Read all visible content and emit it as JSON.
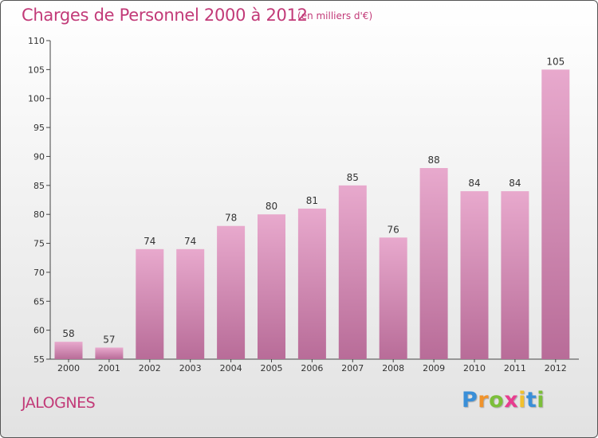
{
  "chart_data": {
    "type": "bar",
    "title": "Charges de Personnel 2000 à 2012",
    "subtitle": "(en milliers d'€)",
    "categories": [
      "2000",
      "2001",
      "2002",
      "2003",
      "2004",
      "2005",
      "2006",
      "2007",
      "2008",
      "2009",
      "2010",
      "2011",
      "2012"
    ],
    "values": [
      58,
      57,
      74,
      74,
      78,
      80,
      81,
      85,
      76,
      88,
      84,
      84,
      105
    ],
    "ylim": [
      55,
      110
    ],
    "yticks": [
      55,
      60,
      65,
      70,
      75,
      80,
      85,
      90,
      95,
      100,
      105,
      110
    ],
    "grid": false,
    "legend": "none",
    "bar_color": "#d986b4",
    "bar_color_light": "#e8a9cd",
    "bar_color_dark": "#b86c98"
  },
  "place_name": "JALOGNES",
  "logo": {
    "letters": [
      "P",
      "r",
      "o",
      "x",
      "i",
      "t",
      "i"
    ],
    "colors": [
      "#3a8fd8",
      "#f0932b",
      "#7cbf3a",
      "#e83c8f",
      "#f2c12e",
      "#3a8fd8",
      "#7cbf3a"
    ]
  }
}
